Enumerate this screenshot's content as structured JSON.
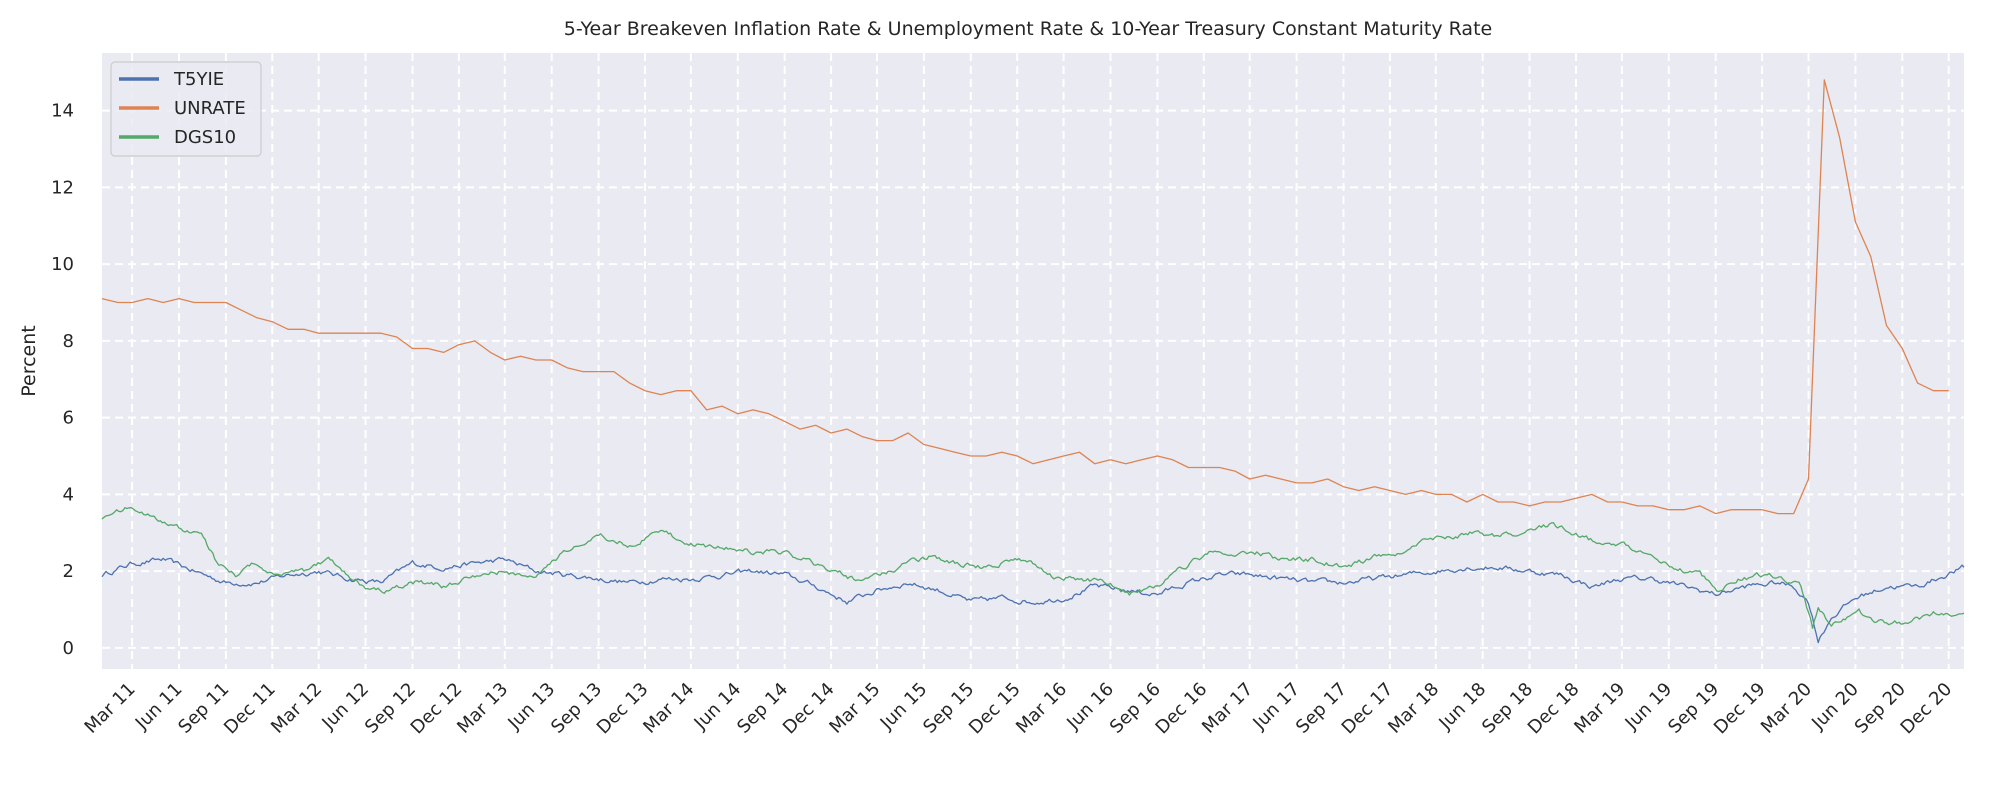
{
  "chart_data": {
    "type": "line",
    "title": "5-Year Breakeven Inflation Rate & Unemployment Rate & 10-Year Treasury Constant Maturity Rate",
    "xlabel": "",
    "ylabel": "Percent",
    "xlim": [
      "2011-01-01",
      "2020-12-31"
    ],
    "ylim": [
      -0.55,
      15.5
    ],
    "yticks": [
      0,
      2,
      4,
      6,
      8,
      10,
      12,
      14
    ],
    "xticks": [
      {
        "date": "2011-03-01",
        "label": "Mar 11"
      },
      {
        "date": "2011-06-01",
        "label": "Jun 11"
      },
      {
        "date": "2011-09-01",
        "label": "Sep 11"
      },
      {
        "date": "2011-12-01",
        "label": "Dec 11"
      },
      {
        "date": "2012-03-01",
        "label": "Mar 12"
      },
      {
        "date": "2012-06-01",
        "label": "Jun 12"
      },
      {
        "date": "2012-09-01",
        "label": "Sep 12"
      },
      {
        "date": "2012-12-01",
        "label": "Dec 12"
      },
      {
        "date": "2013-03-01",
        "label": "Mar 13"
      },
      {
        "date": "2013-06-01",
        "label": "Jun 13"
      },
      {
        "date": "2013-09-01",
        "label": "Sep 13"
      },
      {
        "date": "2013-12-01",
        "label": "Dec 13"
      },
      {
        "date": "2014-03-01",
        "label": "Mar 14"
      },
      {
        "date": "2014-06-01",
        "label": "Jun 14"
      },
      {
        "date": "2014-09-01",
        "label": "Sep 14"
      },
      {
        "date": "2014-12-01",
        "label": "Dec 14"
      },
      {
        "date": "2015-03-01",
        "label": "Mar 15"
      },
      {
        "date": "2015-06-01",
        "label": "Jun 15"
      },
      {
        "date": "2015-09-01",
        "label": "Sep 15"
      },
      {
        "date": "2015-12-01",
        "label": "Dec 15"
      },
      {
        "date": "2016-03-01",
        "label": "Mar 16"
      },
      {
        "date": "2016-06-01",
        "label": "Jun 16"
      },
      {
        "date": "2016-09-01",
        "label": "Sep 16"
      },
      {
        "date": "2016-12-01",
        "label": "Dec 16"
      },
      {
        "date": "2017-03-01",
        "label": "Mar 17"
      },
      {
        "date": "2017-06-01",
        "label": "Jun 17"
      },
      {
        "date": "2017-09-01",
        "label": "Sep 17"
      },
      {
        "date": "2017-12-01",
        "label": "Dec 17"
      },
      {
        "date": "2018-03-01",
        "label": "Mar 18"
      },
      {
        "date": "2018-06-01",
        "label": "Jun 18"
      },
      {
        "date": "2018-09-01",
        "label": "Sep 18"
      },
      {
        "date": "2018-12-01",
        "label": "Dec 18"
      },
      {
        "date": "2019-03-01",
        "label": "Mar 19"
      },
      {
        "date": "2019-06-01",
        "label": "Jun 19"
      },
      {
        "date": "2019-09-01",
        "label": "Sep 19"
      },
      {
        "date": "2019-12-01",
        "label": "Dec 19"
      },
      {
        "date": "2020-03-01",
        "label": "Mar 20"
      },
      {
        "date": "2020-06-01",
        "label": "Jun 20"
      },
      {
        "date": "2020-09-01",
        "label": "Sep 20"
      },
      {
        "date": "2020-12-01",
        "label": "Dec 20"
      }
    ],
    "grid": true,
    "legend_position": "top-left",
    "series": [
      {
        "name": "T5YIE",
        "color": "#4c72b0",
        "x": [
          "2011-01-01",
          "2011-03-01",
          "2011-05-01",
          "2011-07-01",
          "2011-09-01",
          "2011-11-01",
          "2012-01-01",
          "2012-03-01",
          "2012-05-01",
          "2012-07-01",
          "2012-09-01",
          "2012-11-01",
          "2013-01-01",
          "2013-03-01",
          "2013-05-01",
          "2013-07-01",
          "2013-09-01",
          "2013-11-01",
          "2014-01-01",
          "2014-03-01",
          "2014-05-01",
          "2014-07-01",
          "2014-09-01",
          "2014-11-01",
          "2015-01-01",
          "2015-03-01",
          "2015-05-01",
          "2015-07-01",
          "2015-09-01",
          "2015-11-01",
          "2016-01-01",
          "2016-03-01",
          "2016-05-01",
          "2016-07-01",
          "2016-09-01",
          "2016-11-01",
          "2017-01-01",
          "2017-03-01",
          "2017-05-01",
          "2017-07-01",
          "2017-09-01",
          "2017-11-01",
          "2018-01-01",
          "2018-03-01",
          "2018-05-01",
          "2018-07-01",
          "2018-09-01",
          "2018-11-01",
          "2019-01-01",
          "2019-03-01",
          "2019-05-01",
          "2019-07-01",
          "2019-09-01",
          "2019-11-01",
          "2020-01-01",
          "2020-02-01",
          "2020-03-01",
          "2020-03-20",
          "2020-04-15",
          "2020-06-01",
          "2020-08-01",
          "2020-10-01",
          "2020-12-31"
        ],
        "values": [
          1.9,
          2.2,
          2.3,
          2.0,
          1.7,
          1.7,
          1.9,
          2.0,
          1.8,
          1.7,
          2.2,
          2.1,
          2.2,
          2.3,
          2.0,
          1.9,
          1.8,
          1.7,
          1.8,
          1.8,
          1.9,
          2.0,
          1.9,
          1.6,
          1.2,
          1.5,
          1.7,
          1.5,
          1.2,
          1.3,
          1.2,
          1.3,
          1.6,
          1.5,
          1.4,
          1.7,
          1.9,
          1.9,
          1.8,
          1.7,
          1.7,
          1.8,
          1.9,
          2.0,
          2.1,
          2.1,
          2.0,
          1.9,
          1.6,
          1.8,
          1.8,
          1.6,
          1.4,
          1.6,
          1.7,
          1.6,
          1.2,
          0.2,
          0.8,
          1.3,
          1.6,
          1.6,
          2.1
        ]
      },
      {
        "name": "UNRATE",
        "color": "#dd8452",
        "x": [
          "2011-01-01",
          "2011-02-01",
          "2011-03-01",
          "2011-04-01",
          "2011-05-01",
          "2011-06-01",
          "2011-07-01",
          "2011-08-01",
          "2011-09-01",
          "2011-10-01",
          "2011-11-01",
          "2011-12-01",
          "2012-01-01",
          "2012-02-01",
          "2012-03-01",
          "2012-04-01",
          "2012-05-01",
          "2012-06-01",
          "2012-07-01",
          "2012-08-01",
          "2012-09-01",
          "2012-10-01",
          "2012-11-01",
          "2012-12-01",
          "2013-01-01",
          "2013-02-01",
          "2013-03-01",
          "2013-04-01",
          "2013-05-01",
          "2013-06-01",
          "2013-07-01",
          "2013-08-01",
          "2013-09-01",
          "2013-10-01",
          "2013-11-01",
          "2013-12-01",
          "2014-01-01",
          "2014-02-01",
          "2014-03-01",
          "2014-04-01",
          "2014-05-01",
          "2014-06-01",
          "2014-07-01",
          "2014-08-01",
          "2014-09-01",
          "2014-10-01",
          "2014-11-01",
          "2014-12-01",
          "2015-01-01",
          "2015-02-01",
          "2015-03-01",
          "2015-04-01",
          "2015-05-01",
          "2015-06-01",
          "2015-07-01",
          "2015-08-01",
          "2015-09-01",
          "2015-10-01",
          "2015-11-01",
          "2015-12-01",
          "2016-01-01",
          "2016-02-01",
          "2016-03-01",
          "2016-04-01",
          "2016-05-01",
          "2016-06-01",
          "2016-07-01",
          "2016-08-01",
          "2016-09-01",
          "2016-10-01",
          "2016-11-01",
          "2016-12-01",
          "2017-01-01",
          "2017-02-01",
          "2017-03-01",
          "2017-04-01",
          "2017-05-01",
          "2017-06-01",
          "2017-07-01",
          "2017-08-01",
          "2017-09-01",
          "2017-10-01",
          "2017-11-01",
          "2017-12-01",
          "2018-01-01",
          "2018-02-01",
          "2018-03-01",
          "2018-04-01",
          "2018-05-01",
          "2018-06-01",
          "2018-07-01",
          "2018-08-01",
          "2018-09-01",
          "2018-10-01",
          "2018-11-01",
          "2018-12-01",
          "2019-01-01",
          "2019-02-01",
          "2019-03-01",
          "2019-04-01",
          "2019-05-01",
          "2019-06-01",
          "2019-07-01",
          "2019-08-01",
          "2019-09-01",
          "2019-10-01",
          "2019-11-01",
          "2019-12-01",
          "2020-01-01",
          "2020-02-01",
          "2020-03-01",
          "2020-04-01",
          "2020-05-01",
          "2020-06-01",
          "2020-07-01",
          "2020-08-01",
          "2020-09-01",
          "2020-10-01",
          "2020-11-01",
          "2020-12-01"
        ],
        "values": [
          9.1,
          9.0,
          9.0,
          9.1,
          9.0,
          9.1,
          9.0,
          9.0,
          9.0,
          8.8,
          8.6,
          8.5,
          8.3,
          8.3,
          8.2,
          8.2,
          8.2,
          8.2,
          8.2,
          8.1,
          7.8,
          7.8,
          7.7,
          7.9,
          8.0,
          7.7,
          7.5,
          7.6,
          7.5,
          7.5,
          7.3,
          7.2,
          7.2,
          7.2,
          6.9,
          6.7,
          6.6,
          6.7,
          6.7,
          6.2,
          6.3,
          6.1,
          6.2,
          6.1,
          5.9,
          5.7,
          5.8,
          5.6,
          5.7,
          5.5,
          5.4,
          5.4,
          5.6,
          5.3,
          5.2,
          5.1,
          5.0,
          5.0,
          5.1,
          5.0,
          4.8,
          4.9,
          5.0,
          5.1,
          4.8,
          4.9,
          4.8,
          4.9,
          5.0,
          4.9,
          4.7,
          4.7,
          4.7,
          4.6,
          4.4,
          4.5,
          4.4,
          4.3,
          4.3,
          4.4,
          4.2,
          4.1,
          4.2,
          4.1,
          4.0,
          4.1,
          4.0,
          4.0,
          3.8,
          4.0,
          3.8,
          3.8,
          3.7,
          3.8,
          3.8,
          3.9,
          4.0,
          3.8,
          3.8,
          3.7,
          3.7,
          3.6,
          3.6,
          3.7,
          3.5,
          3.6,
          3.6,
          3.6,
          3.5,
          3.5,
          4.4,
          14.8,
          13.3,
          11.1,
          10.2,
          8.4,
          7.8,
          6.9,
          6.7,
          6.7
        ]
      },
      {
        "name": "DGS10",
        "color": "#55a868",
        "x": [
          "2011-01-01",
          "2011-02-15",
          "2011-04-01",
          "2011-06-01",
          "2011-07-15",
          "2011-08-10",
          "2011-09-20",
          "2011-10-25",
          "2011-12-15",
          "2012-02-01",
          "2012-03-20",
          "2012-05-01",
          "2012-06-01",
          "2012-07-20",
          "2012-09-10",
          "2012-11-01",
          "2013-01-01",
          "2013-03-01",
          "2013-05-01",
          "2013-06-25",
          "2013-09-05",
          "2013-11-01",
          "2013-12-31",
          "2014-03-01",
          "2014-05-01",
          "2014-07-01",
          "2014-09-01",
          "2014-11-01",
          "2015-01-30",
          "2015-03-15",
          "2015-05-01",
          "2015-06-15",
          "2015-08-01",
          "2015-10-01",
          "2015-11-15",
          "2016-01-01",
          "2016-02-15",
          "2016-04-01",
          "2016-06-01",
          "2016-07-08",
          "2016-09-01",
          "2016-11-15",
          "2016-12-15",
          "2017-03-15",
          "2017-05-01",
          "2017-07-01",
          "2017-09-08",
          "2017-11-01",
          "2018-01-01",
          "2018-02-15",
          "2018-05-15",
          "2018-07-01",
          "2018-08-15",
          "2018-10-10",
          "2018-12-01",
          "2019-01-15",
          "2019-03-01",
          "2019-05-01",
          "2019-06-15",
          "2019-08-01",
          "2019-09-03",
          "2019-10-15",
          "2019-12-15",
          "2020-01-15",
          "2020-02-15",
          "2020-03-09",
          "2020-03-20",
          "2020-04-15",
          "2020-06-08",
          "2020-08-01",
          "2020-09-15",
          "2020-11-01",
          "2020-12-31"
        ],
        "values": [
          3.4,
          3.6,
          3.5,
          3.1,
          3.0,
          2.3,
          1.9,
          2.2,
          1.9,
          2.0,
          2.3,
          1.9,
          1.6,
          1.5,
          1.7,
          1.6,
          1.9,
          2.0,
          1.8,
          2.5,
          2.9,
          2.7,
          3.0,
          2.7,
          2.6,
          2.5,
          2.5,
          2.2,
          1.7,
          2.0,
          2.2,
          2.4,
          2.2,
          2.1,
          2.3,
          2.2,
          1.8,
          1.8,
          1.7,
          1.4,
          1.6,
          2.3,
          2.5,
          2.5,
          2.3,
          2.3,
          2.1,
          2.4,
          2.5,
          2.9,
          3.0,
          2.9,
          3.0,
          3.2,
          3.0,
          2.7,
          2.7,
          2.4,
          2.1,
          1.9,
          1.5,
          1.8,
          1.9,
          1.8,
          1.6,
          0.5,
          1.0,
          0.6,
          0.9,
          0.6,
          0.7,
          0.9,
          0.9
        ]
      }
    ]
  }
}
